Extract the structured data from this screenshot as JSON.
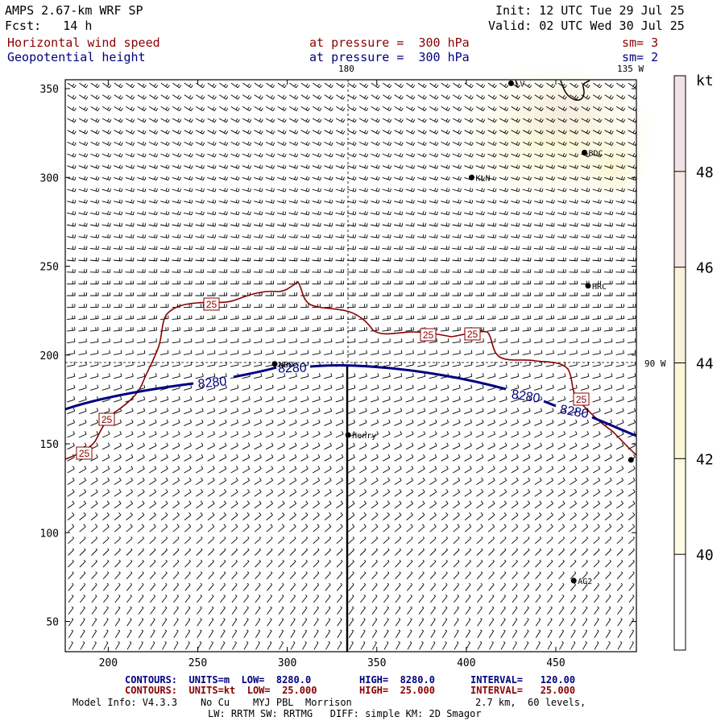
{
  "header": {
    "model": "AMPS 2.67-km WRF SP",
    "fcst": "Fcst:   14 h",
    "init": "Init: 12 UTC Tue 29 Jul 25",
    "valid": "Valid: 02 UTC Wed 30 Jul 25",
    "field1": "Horizontal wind speed",
    "field1_level": "at pressure =  300 hPa",
    "field1_sm": "sm= 3",
    "field2": "Geopotential height",
    "field2_level": "at pressure =  300 hPa",
    "field2_sm": "sm= 2"
  },
  "map": {
    "top_lon_label": "180",
    "top_right_label": "135 W",
    "right_lat_label": "90 W",
    "y_ticks": [
      350,
      300,
      250,
      200,
      150,
      100,
      50
    ],
    "x_ticks": [
      200,
      250,
      300,
      350,
      400,
      450
    ],
    "x_range": [
      176,
      495
    ],
    "y_range": [
      33,
      355
    ],
    "stations": [
      {
        "name": "LV",
        "x": 425,
        "y": 353
      },
      {
        "name": "BDC",
        "x": 466,
        "y": 314
      },
      {
        "name": "KLN",
        "x": 403,
        "y": 300
      },
      {
        "name": "HRC",
        "x": 468,
        "y": 239
      },
      {
        "name": "NBO",
        "x": 293,
        "y": 195
      },
      {
        "name": "Henry",
        "x": 334,
        "y": 155
      },
      {
        "name": "",
        "x": 492,
        "y": 141
      },
      {
        "name": "AG2",
        "x": 460,
        "y": 73
      }
    ],
    "height_contour_label": "8280",
    "speed_contour_label": "25"
  },
  "colorbar": {
    "unit": "kt",
    "labels": [
      "48",
      "46",
      "44",
      "42",
      "40"
    ],
    "colors": [
      "#f2e2e6",
      "#f5e8e2",
      "#f8f1dc",
      "#fbf8d8",
      "#fdfbe4",
      "#ffffff"
    ]
  },
  "footer": {
    "line1_a": "CONTOURS:  UNITS=m  LOW=  8280.0",
    "line1_b": "HIGH=  8280.0",
    "line1_c": "INTERVAL=   120.00",
    "line2_a": "CONTOURS:  UNITS=kt  LOW=  25.000",
    "line2_b": "HIGH=  25.000",
    "line2_c": "INTERVAL=   25.000",
    "model_info": "Model Info: V4.3.3    No Cu    MYJ PBL  Morrison",
    "levels": "2.7 km,  60 levels,",
    "physics": "LW: RRTM SW: RRTMG   DIFF: simple KM: 2D Smagor"
  }
}
